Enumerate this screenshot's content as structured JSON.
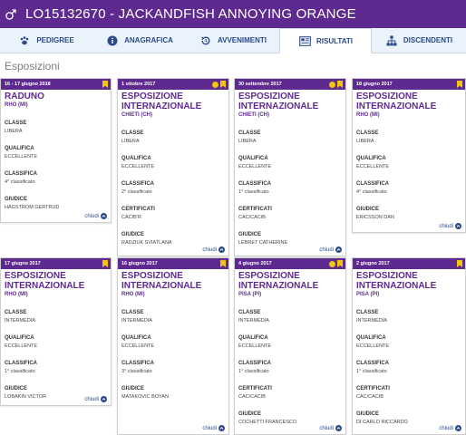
{
  "header": {
    "title": "LO15132670 - JACKANDFISH ANNOYING ORANGE",
    "sex_icon": "male-icon"
  },
  "tabs": [
    {
      "label": "PEDIGREE",
      "icon": "paw-icon"
    },
    {
      "label": "ANAGRAFICA",
      "icon": "info-icon"
    },
    {
      "label": "AVVENIMENTI",
      "icon": "history-icon"
    },
    {
      "label": "RISULTATI",
      "icon": "newspaper-icon",
      "active": true
    },
    {
      "label": "DISCENDENTI",
      "icon": "tree-icon"
    }
  ],
  "section_title": "Esposizioni",
  "more_label": "chiudi",
  "colors": {
    "brand": "#5e2a8f",
    "accent": "#f2c40e",
    "link": "#2b4a8a"
  },
  "labels": {
    "classe": "CLASSE",
    "qualifica": "QUALIFICA",
    "classifica": "CLASSIFICA",
    "certificati": "CERTIFICATI",
    "giudice": "GIUDICE"
  },
  "cards": [
    {
      "date": "16 - 17 giugno 2018",
      "dot": false,
      "title": "RADUNO",
      "city": "RHO (MI)",
      "classe": "LIBERA",
      "qualifica": "ECCELLENTE",
      "classifica": "4° classificato",
      "certificati": "",
      "giudice": "HAGSTROM GERTRUD"
    },
    {
      "date": "1 ottobre 2017",
      "dot": true,
      "title": "ESPOSIZIONE INTERNAZIONALE",
      "city": "CHIETI (CH)",
      "classe": "LIBERA",
      "qualifica": "ECCELLENTE",
      "classifica": "2° classificato",
      "certificati": "CACIB'R",
      "giudice": "RADZIUK SVIATLANA"
    },
    {
      "date": "30 settembre 2017",
      "dot": true,
      "title": "ESPOSIZIONE INTERNAZIONALE",
      "city": "CHIETI (CH)",
      "classe": "LIBERA",
      "qualifica": "ECCELLENTE",
      "classifica": "1° classificato",
      "certificati": "CAC/CACIB",
      "giudice": "LEBRET CATHERINE"
    },
    {
      "date": "18 giugno 2017",
      "dot": false,
      "title": "ESPOSIZIONE INTERNAZIONALE",
      "city": "RHO (MI)",
      "classe": "LIBERA",
      "qualifica": "ECCELLENTE",
      "classifica": "4° classificato",
      "certificati": "",
      "giudice": "ERICSSON DAN"
    },
    {
      "date": "17 giugno 2017",
      "dot": false,
      "title": "ESPOSIZIONE INTERNAZIONALE",
      "city": "RHO (MI)",
      "classe": "INTERMEDIA",
      "qualifica": "ECCELLENTE",
      "classifica": "1° classificato",
      "certificati": "",
      "giudice": "LOBAKIN VICTOR"
    },
    {
      "date": "16 giugno 2017",
      "dot": false,
      "title": "ESPOSIZIONE INTERNAZIONALE",
      "city": "RHO (MI)",
      "classe": "INTERMEDIA",
      "qualifica": "ECCELLENTE",
      "classifica": "3° classificato",
      "certificati": "",
      "giudice": "MATAKOVIC BOYAN"
    },
    {
      "date": "4 giugno 2017",
      "dot": true,
      "title": "ESPOSIZIONE INTERNAZIONALE",
      "city": "PISA (PI)",
      "classe": "INTERMEDIA",
      "qualifica": "ECCELLENTE",
      "classifica": "1° classificato",
      "certificati": "CAC/CACIB",
      "giudice": "COCHETTI FRANCESCO"
    },
    {
      "date": "2 giugno 2017",
      "dot": false,
      "title": "ESPOSIZIONE INTERNAZIONALE",
      "city": "PISA (PI)",
      "classe": "INTERMEDIA",
      "qualifica": "ECCELLENTE",
      "classifica": "1° classificato",
      "certificati": "CAC/CACIB",
      "giudice": "DI CARLO RICCARDO"
    }
  ]
}
